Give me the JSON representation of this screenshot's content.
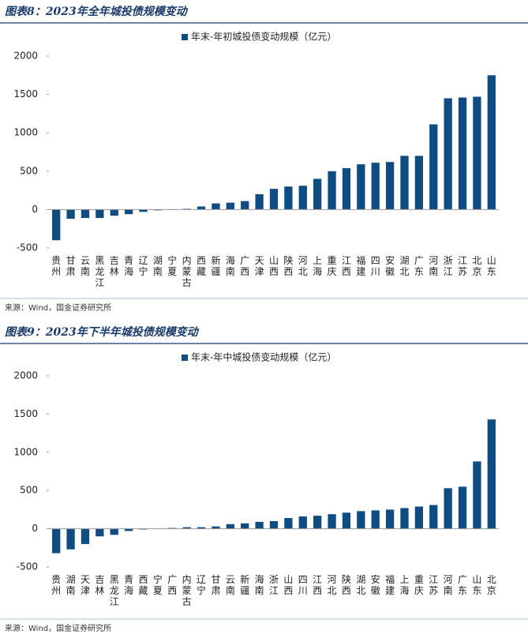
{
  "chart_data": [
    {
      "type": "bar",
      "title": "图表8：2023年全年城投债规模变动",
      "source": "来源：Wind，国金证券研究所",
      "categories": [
        "贵州",
        "甘肃",
        "云南",
        "黑龙江",
        "吉林",
        "青海",
        "辽宁",
        "湖南",
        "宁夏",
        "内蒙古",
        "西藏",
        "新疆",
        "海南",
        "广西",
        "天津",
        "山西",
        "陕西",
        "河北",
        "上海",
        "重庆",
        "江西",
        "福建",
        "四川",
        "安徽",
        "湖北",
        "广东",
        "河南",
        "浙江",
        "江苏",
        "北京",
        "山东"
      ],
      "series": [
        {
          "name": "年末-年初城投债变动规模（亿元）",
          "color": "#0f4c81",
          "values": [
            -400,
            -120,
            -110,
            -110,
            -80,
            -60,
            -30,
            -10,
            -5,
            10,
            40,
            80,
            90,
            110,
            200,
            270,
            300,
            310,
            400,
            500,
            540,
            590,
            610,
            620,
            700,
            700,
            1110,
            1450,
            1460,
            1470,
            1750
          ]
        }
      ],
      "ylim": [
        -500,
        2000
      ],
      "yticks": [
        -500,
        0,
        500,
        1000,
        1500,
        2000
      ]
    },
    {
      "type": "bar",
      "title": "图表9：2023年下半年城投债规模变动",
      "source": "来源：Wind，国金证券研究所",
      "categories": [
        "贵州",
        "湖南",
        "天津",
        "吉林",
        "黑龙江",
        "青海",
        "西藏",
        "宁夏",
        "广西",
        "内蒙古",
        "辽宁",
        "甘肃",
        "云南",
        "新疆",
        "海南",
        "浙江",
        "山西",
        "四川",
        "江西",
        "河北",
        "陕西",
        "湖北",
        "安徽",
        "福建",
        "上海",
        "重庆",
        "江苏",
        "河南",
        "广东",
        "山东",
        "北京"
      ],
      "series": [
        {
          "name": "年末-年中城投债变动规模（亿元）",
          "color": "#0f4c81",
          "values": [
            -320,
            -270,
            -200,
            -100,
            -80,
            -30,
            -10,
            -5,
            10,
            20,
            20,
            30,
            60,
            70,
            90,
            100,
            140,
            160,
            170,
            190,
            210,
            230,
            240,
            250,
            270,
            290,
            310,
            530,
            550,
            880,
            1430
          ]
        }
      ],
      "ylim": [
        -500,
        2000
      ],
      "yticks": [
        -500,
        0,
        500,
        1000,
        1500,
        2000
      ]
    }
  ]
}
